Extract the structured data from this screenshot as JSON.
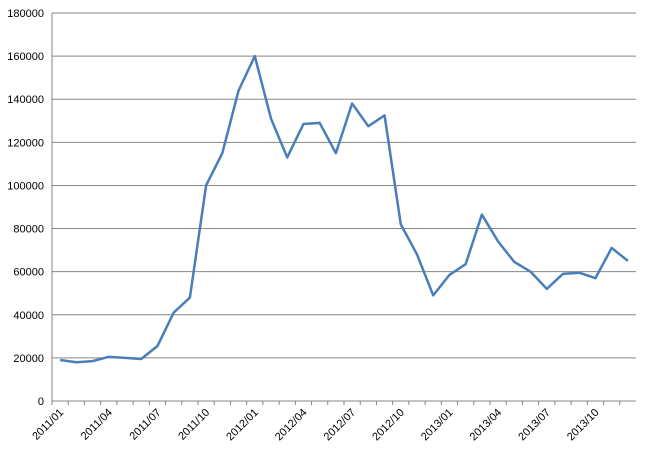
{
  "chart_data": {
    "type": "line",
    "categories": [
      "2011/01",
      null,
      null,
      "2011/04",
      null,
      null,
      "2011/07",
      null,
      null,
      "2011/10",
      null,
      null,
      "2012/01",
      null,
      null,
      "2012/04",
      null,
      null,
      "2012/07",
      null,
      null,
      "2012/10",
      null,
      null,
      "2013/01",
      null,
      null,
      "2013/04",
      null,
      null,
      "2013/07",
      null,
      null,
      "2013/10",
      null,
      null
    ],
    "series": [
      {
        "color": "#4a7ebb",
        "values": [
          19000,
          18000,
          18500,
          20500,
          20000,
          19500,
          25500,
          41000,
          48000,
          100000,
          115000,
          144000,
          160000,
          131000,
          113000,
          128500,
          129000,
          115000,
          138000,
          127500,
          132500,
          82000,
          68000,
          49000,
          58500,
          63500,
          86500,
          74000,
          64500,
          60000,
          52000,
          59000,
          59500,
          57000,
          71000,
          65000
        ]
      }
    ],
    "ylim": [
      0,
      180000
    ],
    "yticks": [
      0,
      20000,
      40000,
      60000,
      80000,
      100000,
      120000,
      140000,
      160000,
      180000
    ],
    "grid": true
  }
}
